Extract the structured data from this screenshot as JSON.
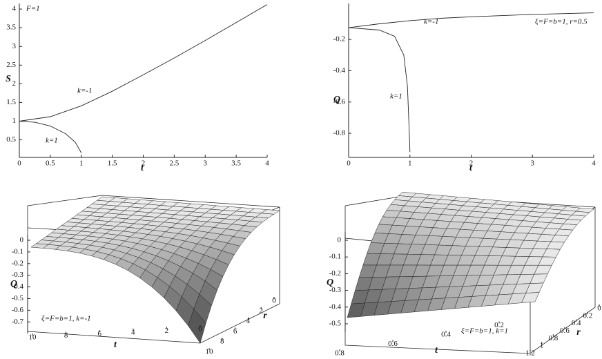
{
  "chart_data": [
    {
      "type": "line",
      "xlabel": "t",
      "ylabel": "S",
      "annotations": [
        "F=1"
      ],
      "xlim": [
        0,
        4
      ],
      "xticks": [
        0,
        0.5,
        1,
        1.5,
        2,
        2.5,
        3,
        3.5,
        4
      ],
      "ylim": [
        0.03,
        4.15
      ],
      "yticks": [
        0.5,
        1,
        1.5,
        2,
        2.5,
        3,
        3.5,
        4
      ],
      "series": [
        {
          "name": "k=-1",
          "color": "#222222",
          "x": [
            0,
            0.5,
            1,
            1.5,
            2,
            2.5,
            3,
            3.5,
            4
          ],
          "values": [
            1,
            1.12,
            1.41,
            1.8,
            2.24,
            2.69,
            3.16,
            3.64,
            4.12
          ]
        },
        {
          "name": "k=1",
          "color": "#222222",
          "x": [
            0,
            0.25,
            0.5,
            0.75,
            0.9,
            0.97,
            1
          ],
          "values": [
            1,
            0.97,
            0.87,
            0.66,
            0.44,
            0.24,
            0.15
          ]
        }
      ]
    },
    {
      "type": "line",
      "xlabel": "t",
      "ylabel": "Q",
      "annotations": [
        "ξ=F=b=1, r=0.5"
      ],
      "xlim": [
        0,
        4
      ],
      "xticks": [
        0,
        1,
        2,
        3,
        4
      ],
      "ylim": [
        -0.954,
        0.03
      ],
      "yticks": [
        -0.8,
        -0.6,
        -0.4,
        -0.2
      ],
      "series": [
        {
          "name": "k=-1",
          "color": "#222222",
          "x": [
            0,
            0.5,
            1,
            1.5,
            2,
            3,
            4
          ],
          "values": [
            -0.125,
            -0.1,
            -0.08,
            -0.065,
            -0.055,
            -0.04,
            -0.03
          ]
        },
        {
          "name": "k=1",
          "color": "#222222",
          "x": [
            0,
            0.5,
            0.75,
            0.9,
            0.96,
            0.99,
            1
          ],
          "values": [
            -0.125,
            -0.14,
            -0.18,
            -0.3,
            -0.5,
            -0.8,
            -0.92
          ]
        }
      ]
    },
    {
      "type": "surface",
      "xlabel": "t",
      "ylabel": "r",
      "zlabel": "Q",
      "annotations": [
        "ξ=F=b=1, k=-1"
      ],
      "xlim": [
        0,
        10
      ],
      "xticks": [
        0,
        2,
        4,
        6,
        8,
        10
      ],
      "ylim": [
        0,
        10
      ],
      "yticks": [
        0,
        2,
        4,
        6,
        8,
        10
      ],
      "zlim": [
        -0.8,
        0.05
      ],
      "zticks": [
        0,
        -0.1,
        -0.2,
        -0.3,
        -0.4,
        -0.5,
        -0.6,
        -0.7
      ]
    },
    {
      "type": "surface",
      "xlabel": "t",
      "ylabel": "r",
      "zlabel": "Q",
      "annotations": [
        "ξ=F=b=1, k=1"
      ],
      "xlim": [
        0,
        0.8
      ],
      "xticks": [
        0.2,
        0.4,
        0.6,
        0.8
      ],
      "ylim": [
        0,
        1.2
      ],
      "yticks": [
        0,
        0.2,
        0.4,
        0.6,
        0.8,
        1,
        1.2
      ],
      "zlim": [
        -0.55,
        0.05
      ],
      "zticks": [
        0,
        -0.1,
        -0.2,
        -0.3,
        -0.4,
        -0.5
      ]
    }
  ]
}
